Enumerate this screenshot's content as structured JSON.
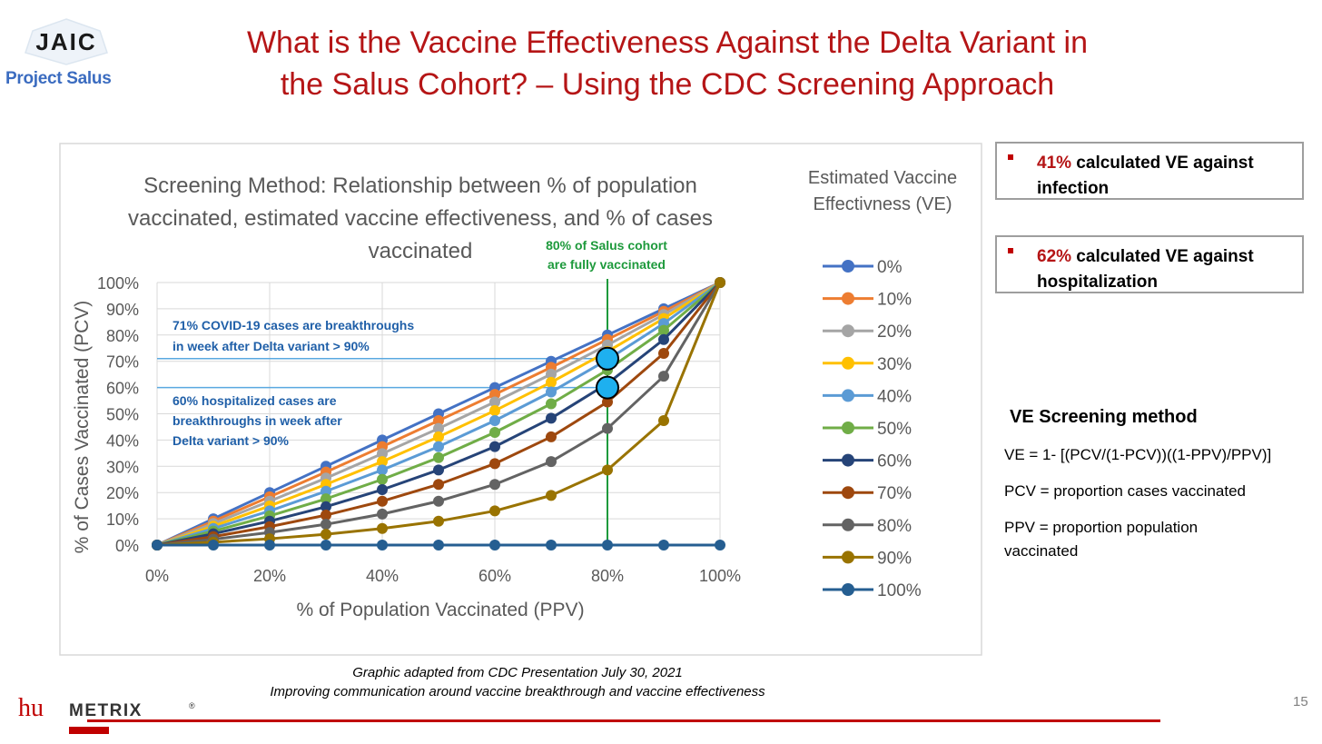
{
  "title_lines": [
    "What is the Vaccine Effectiveness Against the Delta Variant in",
    "the Salus Cohort? – Using the CDC Screening Approach"
  ],
  "logos": {
    "jaic": "JAIC",
    "salus": "Project Salus",
    "humetrix": "huMETRIX",
    "humetrix_prefix": "hu",
    "humetrix_suffix": "METRIX",
    "registered": "®"
  },
  "callouts": [
    {
      "pct": "41%",
      "text": " calculated VE against infection"
    },
    {
      "pct": "62%",
      "text": " calculated VE against hospitalization"
    }
  ],
  "method": {
    "title": "VE Screening method",
    "formula": "VE = 1- [(PCV/(1-PCV))((1-PPV)/PPV)]",
    "pcv": "PCV = proportion cases vaccinated",
    "ppv": "PPV = proportion population vaccinated"
  },
  "caption": [
    "Graphic adapted from CDC Presentation July 30, 2021",
    "Improving communication around vaccine breakthrough and vaccine effectiveness"
  ],
  "page_number": "15",
  "colors": {
    "title": "#b51516",
    "accent_red": "#c00000",
    "salus_blue": "#3b6cc0",
    "annotation_blue": "#1f5fa8",
    "annotation_green": "#1e9a3c",
    "highlight_point": "#1eb0ef"
  },
  "chart_data": {
    "type": "line",
    "title_lines": [
      "Screening Method: Relationship between % of population",
      "vaccinated, estimated vaccine effectiveness, and % of cases",
      "vaccinated"
    ],
    "xlabel": "% of Population Vaccinated (PPV)",
    "ylabel": "% of Cases Vaccinated (PCV)",
    "x": [
      0,
      10,
      20,
      30,
      40,
      50,
      60,
      70,
      80,
      90,
      100
    ],
    "xticks": [
      "0%",
      "20%",
      "40%",
      "60%",
      "80%",
      "100%"
    ],
    "xtick_values": [
      0,
      20,
      40,
      60,
      80,
      100
    ],
    "yticks": [
      "0%",
      "10%",
      "20%",
      "30%",
      "40%",
      "50%",
      "60%",
      "70%",
      "80%",
      "90%",
      "100%"
    ],
    "ytick_values": [
      0,
      10,
      20,
      30,
      40,
      50,
      60,
      70,
      80,
      90,
      100
    ],
    "xlim": [
      0,
      100
    ],
    "ylim": [
      0,
      100
    ],
    "grid": true,
    "legend_title_lines": [
      "Estimated Vaccine",
      "Effectivness (VE)"
    ],
    "legend_position": "right",
    "series": [
      {
        "name": "0%",
        "color": "#4472c4",
        "values": [
          0,
          10,
          20,
          30,
          40,
          50,
          60,
          70,
          80,
          90,
          100
        ]
      },
      {
        "name": "10%",
        "color": "#ed7d31",
        "values": [
          0,
          9.1,
          18.4,
          27.8,
          37.5,
          47.4,
          57.4,
          67.7,
          78.3,
          89,
          100
        ]
      },
      {
        "name": "20%",
        "color": "#a5a5a5",
        "values": [
          0,
          8.2,
          16.7,
          25.5,
          34.8,
          44.4,
          54.5,
          65.1,
          76.2,
          87.8,
          100
        ]
      },
      {
        "name": "30%",
        "color": "#ffc000",
        "values": [
          0,
          7.2,
          14.9,
          23.1,
          31.8,
          41.2,
          51.2,
          62,
          73.7,
          86.3,
          100
        ]
      },
      {
        "name": "40%",
        "color": "#5b9bd5",
        "values": [
          0,
          6.3,
          13,
          20.5,
          28.6,
          37.5,
          47.4,
          58.3,
          70.6,
          84.4,
          100
        ]
      },
      {
        "name": "50%",
        "color": "#70ad47",
        "values": [
          0,
          5.3,
          11.1,
          17.6,
          25,
          33.3,
          42.9,
          53.8,
          66.7,
          81.8,
          100
        ]
      },
      {
        "name": "60%",
        "color": "#264478",
        "values": [
          0,
          4.3,
          9.1,
          14.6,
          21.1,
          28.6,
          37.5,
          48.3,
          61.5,
          78.3,
          100
        ]
      },
      {
        "name": "70%",
        "color": "#9e480e",
        "values": [
          0,
          3.2,
          7,
          11.4,
          16.7,
          23.1,
          31,
          41.2,
          54.5,
          73,
          100
        ]
      },
      {
        "name": "80%",
        "color": "#636363",
        "values": [
          0,
          2.2,
          4.8,
          7.9,
          11.8,
          16.7,
          23.1,
          31.8,
          44.4,
          64.3,
          100
        ]
      },
      {
        "name": "90%",
        "color": "#997300",
        "values": [
          0,
          1.1,
          2.4,
          4.1,
          6.3,
          9.1,
          13,
          18.9,
          28.6,
          47.4,
          100
        ]
      },
      {
        "name": "100%",
        "color": "#255e91",
        "values": [
          0,
          0,
          0,
          0,
          0,
          0,
          0,
          0,
          0,
          0,
          0
        ]
      }
    ],
    "annotations": {
      "cohort_line": {
        "x": 80,
        "label_lines": [
          "80% of Salus cohort",
          "are fully vaccinated"
        ]
      },
      "breakthrough_infection": {
        "y": 71,
        "label_lines": [
          "71% COVID-19 cases are breakthroughs",
          "in week after Delta variant > 90%"
        ]
      },
      "breakthrough_hosp": {
        "y": 60,
        "label_lines": [
          "60% hospitalized cases are",
          "breakthroughs in week after",
          "Delta variant > 90%"
        ]
      },
      "points": [
        {
          "x": 80,
          "y": 71
        },
        {
          "x": 80,
          "y": 60
        }
      ]
    }
  }
}
